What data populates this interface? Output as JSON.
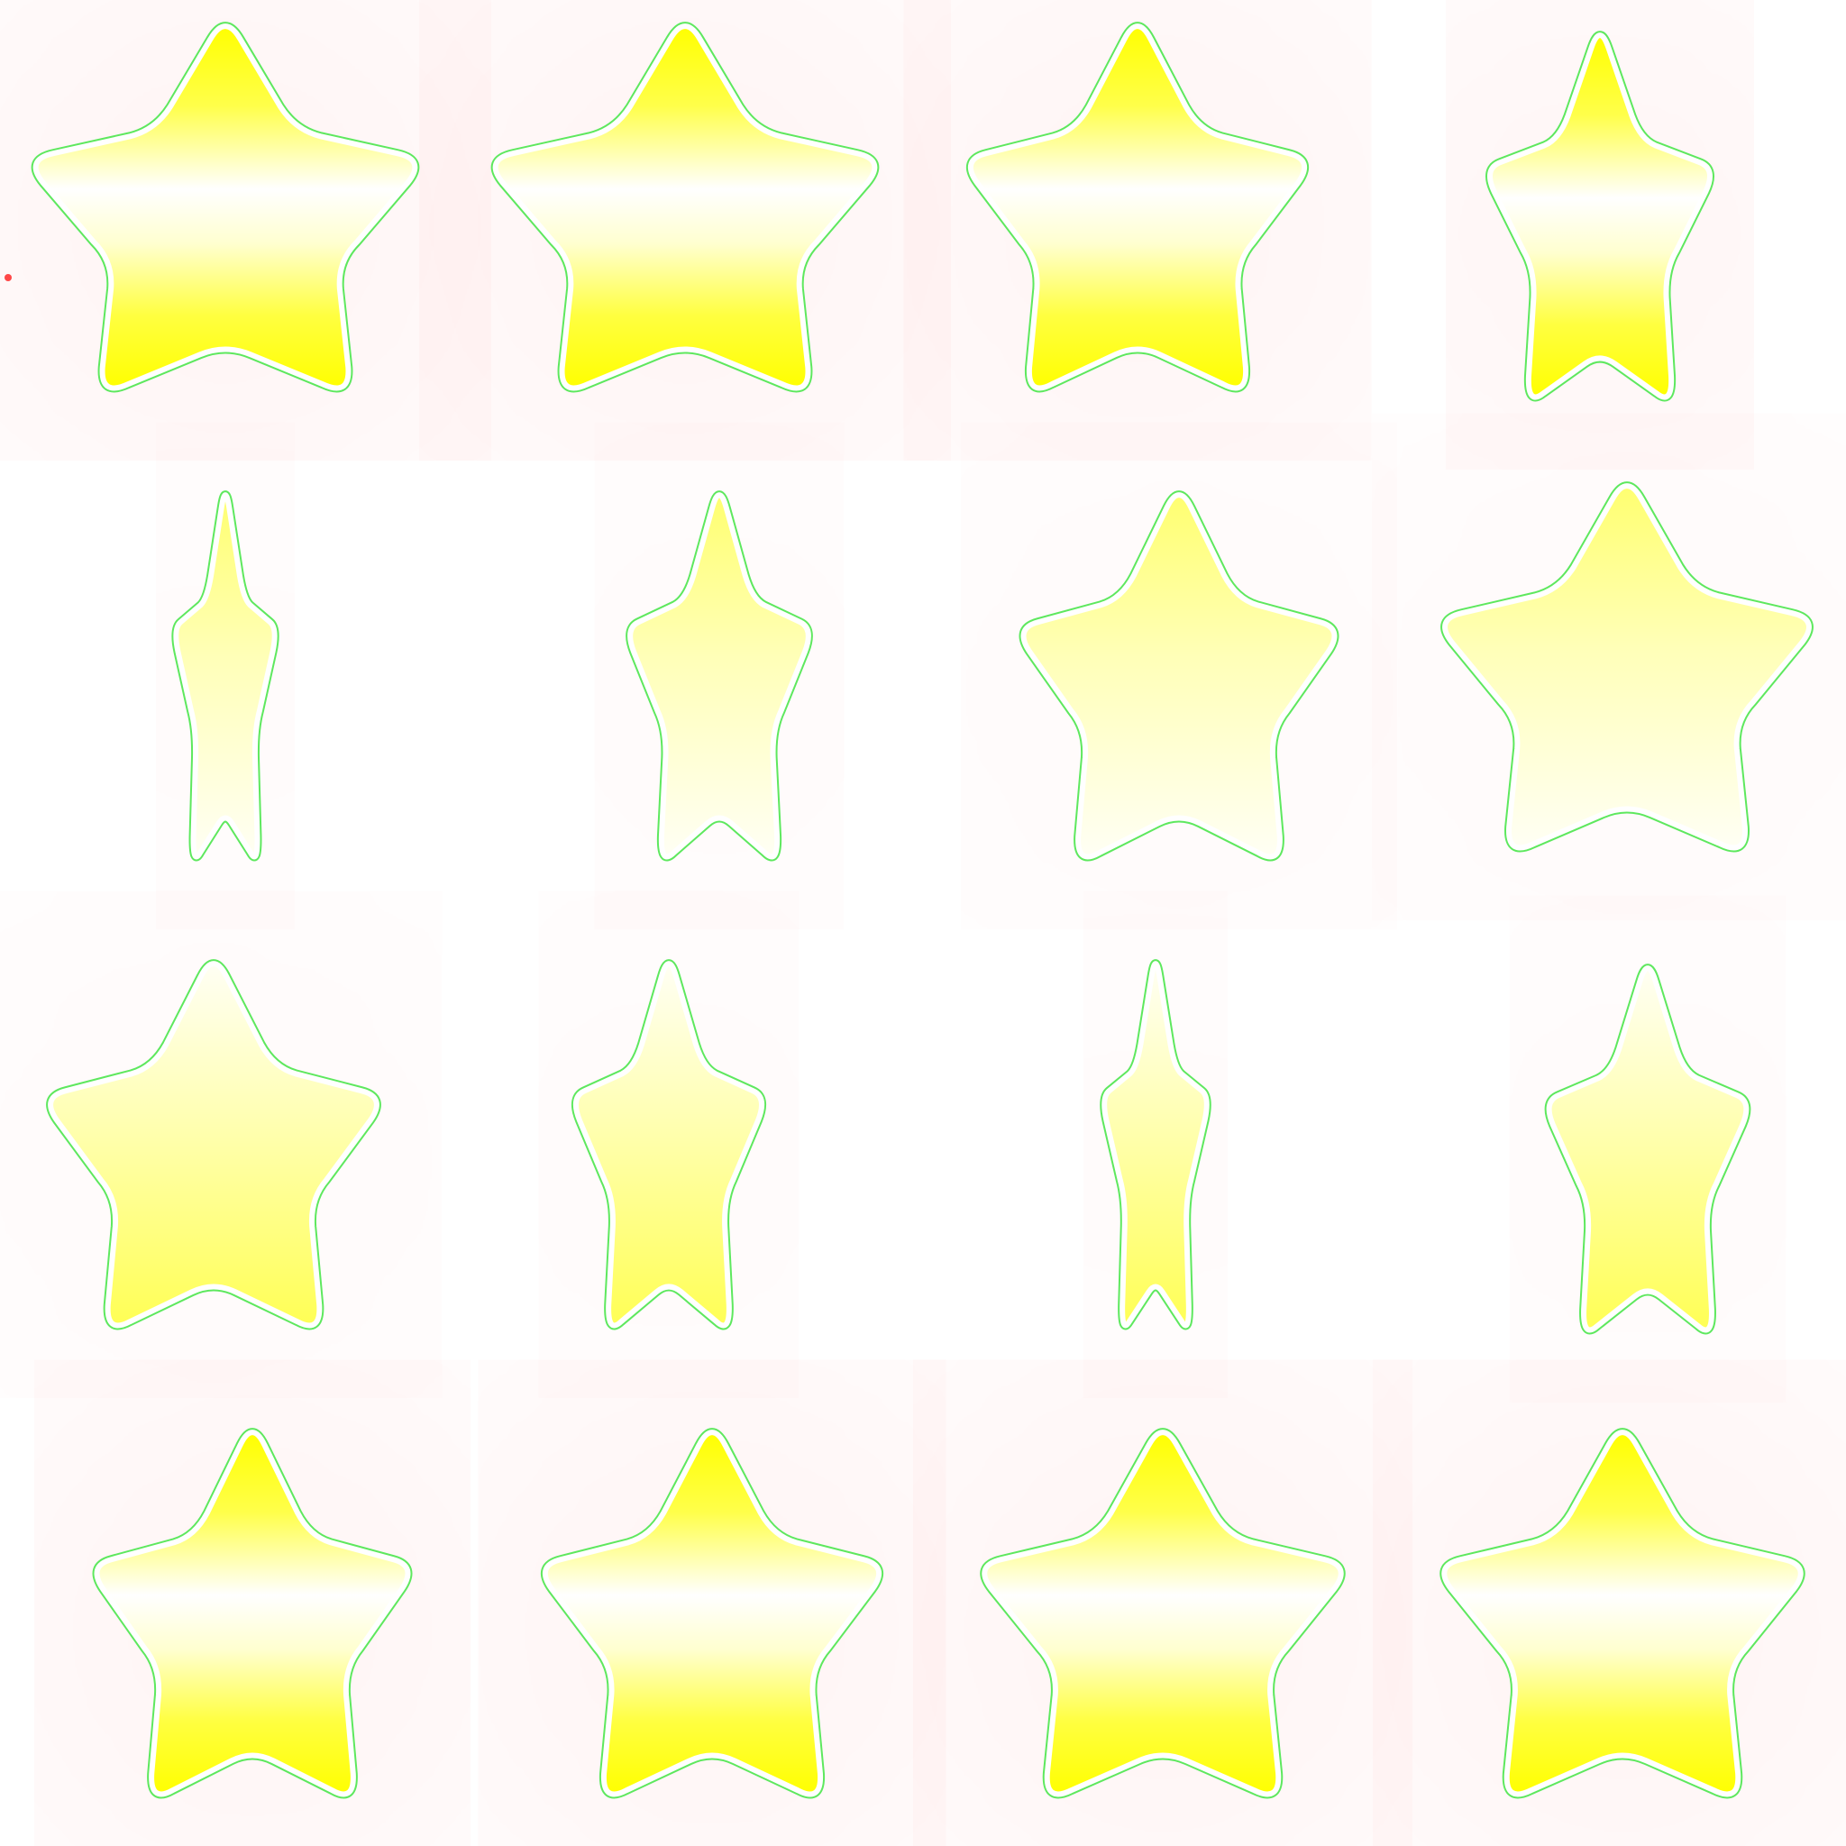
{
  "sprite_sheet": {
    "background": "#ffffff",
    "rows": 4,
    "columns": 4,
    "frame_count": 16,
    "colors": {
      "fill_yellow": "#ffff00",
      "fill_highlight": "#ffffff",
      "fill_pale": "#ffffc0",
      "fill_pale_white": "#fffff0",
      "inner_outline": "#ffffff",
      "inner_edge": "#5ee85e",
      "glow_outline": "#ff1a1a"
    },
    "frames": [
      {
        "name": "star-frame-1",
        "view": "front",
        "fill": "glossy",
        "glow": "strong"
      },
      {
        "name": "star-frame-2",
        "view": "front",
        "fill": "glossy",
        "glow": "strong"
      },
      {
        "name": "star-frame-3",
        "view": "turning",
        "fill": "glossy",
        "glow": "strong"
      },
      {
        "name": "star-frame-4",
        "view": "side-turning",
        "fill": "glossy",
        "glow": "strong"
      },
      {
        "name": "star-frame-5",
        "view": "edge",
        "fill": "pale-fade-down",
        "glow": "soft"
      },
      {
        "name": "star-frame-6",
        "view": "side-turning",
        "fill": "pale-fade-down",
        "glow": "soft"
      },
      {
        "name": "star-frame-7",
        "view": "turning",
        "fill": "pale-fade-down",
        "glow": "soft"
      },
      {
        "name": "star-frame-8",
        "view": "front",
        "fill": "pale-fade-down",
        "glow": "soft"
      },
      {
        "name": "star-frame-9",
        "view": "turning",
        "fill": "pale-fade-up",
        "glow": "soft"
      },
      {
        "name": "star-frame-10",
        "view": "side-turning",
        "fill": "pale-fade-up",
        "glow": "soft"
      },
      {
        "name": "star-frame-11",
        "view": "edge",
        "fill": "pale-fade-up",
        "glow": "soft"
      },
      {
        "name": "star-frame-12",
        "view": "side-turning",
        "fill": "pale-fade-up",
        "glow": "soft"
      },
      {
        "name": "star-frame-13",
        "view": "front",
        "fill": "glossy",
        "glow": "strong"
      },
      {
        "name": "star-frame-14",
        "view": "front",
        "fill": "glossy",
        "glow": "strong"
      },
      {
        "name": "star-frame-15",
        "view": "front",
        "fill": "glossy",
        "glow": "strong"
      },
      {
        "name": "star-frame-16",
        "view": "front",
        "fill": "glossy",
        "glow": "strong"
      }
    ]
  }
}
